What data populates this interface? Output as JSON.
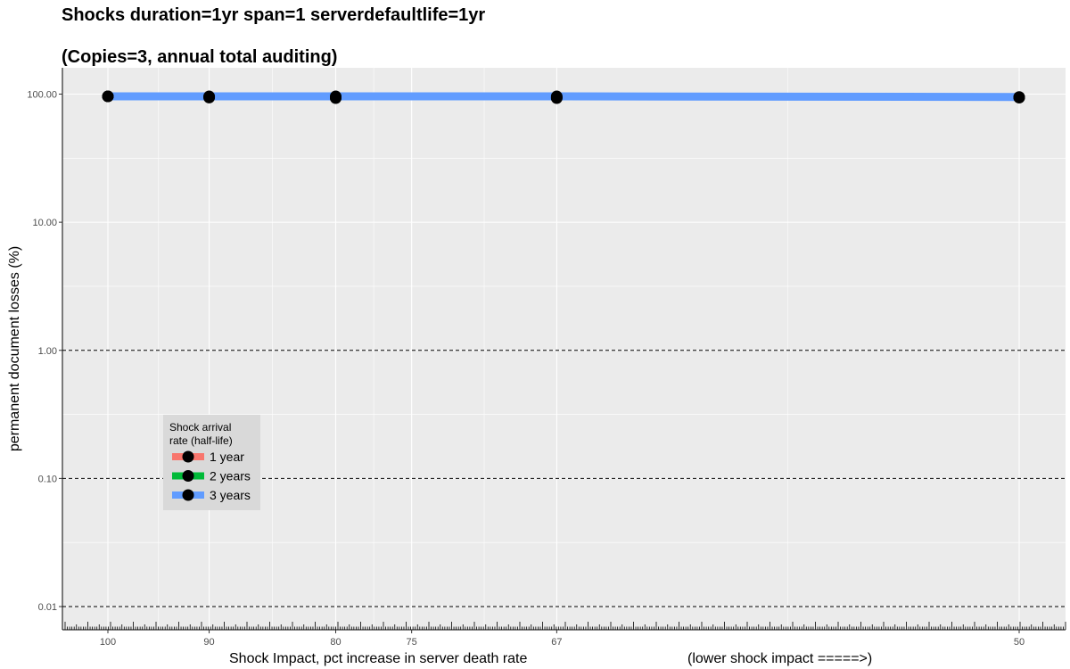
{
  "chart_data": {
    "type": "line",
    "title": "Shocks duration=1yr span=1 serverdefaultlife=1yr",
    "subtitle": "(Copies=3, annual total auditing)",
    "xlabel": "Shock Impact, pct increase in server death rate",
    "xlabel_note": "(lower shock impact =====>)",
    "ylabel": "permanent document losses (%)",
    "y_scale": "log",
    "ylim": [
      0.006,
      120
    ],
    "y_ticks": [
      100,
      10,
      1,
      0.1,
      0.01
    ],
    "y_tick_labels": [
      "100.00",
      "10.00",
      "1.00",
      "0.10",
      "0.01"
    ],
    "x_scale": "reciprocal",
    "x_reversed": true,
    "x_ticks": [
      100,
      90,
      80,
      75,
      67,
      50
    ],
    "x_tick_labels": [
      "100",
      "90",
      "80",
      "75",
      "67",
      "50"
    ],
    "x": [
      100,
      90,
      80,
      67,
      50
    ],
    "series": [
      {
        "name": "1 year",
        "color": "#F8766D",
        "values": [
          96,
          94,
          94,
          94,
          94
        ]
      },
      {
        "name": "2 years",
        "color": "#00BA38",
        "values": [
          96,
          95,
          93,
          93,
          94
        ]
      },
      {
        "name": "3 years",
        "color": "#619CFF",
        "values": [
          96,
          96,
          96,
          96,
          95
        ]
      }
    ],
    "reference_lines_y": [
      1,
      0.1,
      0.01
    ],
    "grid": true,
    "legend": {
      "title_line1": "Shock arrival",
      "title_line2": "rate (half-life)",
      "position": "bottom-left"
    }
  }
}
